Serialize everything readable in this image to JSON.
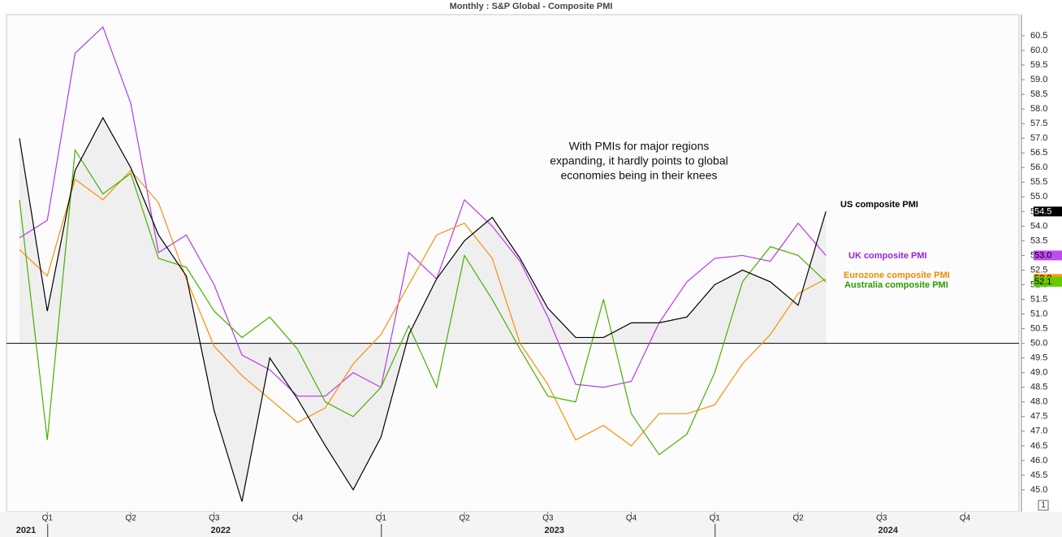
{
  "chart_data": {
    "type": "line",
    "title": "Monthly : S&P Global - Composite PMI",
    "annotation": [
      "With PMIs for major regions",
      "expanding, it hardly points to global",
      "economies being in their knees"
    ],
    "badge": "1",
    "x": [
      "2020-12",
      "2021-01",
      "2021-02",
      "2021-03",
      "2021-04",
      "2021-05",
      "2021-06",
      "2021-07",
      "2021-08",
      "2021-09",
      "2021-10",
      "2021-11",
      "2021-12",
      "2022-01",
      "2022-02",
      "2022-03",
      "2022-04",
      "2022-05",
      "2022-06",
      "2022-07",
      "2022-08",
      "2022-09",
      "2022-10",
      "2022-11",
      "2022-12",
      "2023-01",
      "2023-02",
      "2023-03",
      "2023-04",
      "2023-05"
    ],
    "xlim": [
      "2020-12",
      "2023-12"
    ],
    "xticks": [
      {
        "value": "2021-01",
        "label": "Q1"
      },
      {
        "value": "2021-04",
        "label": "Q2"
      },
      {
        "value": "2021-07",
        "label": "Q3"
      },
      {
        "value": "2021-10",
        "label": "Q4"
      },
      {
        "value": "2022-01",
        "label": "Q1"
      },
      {
        "value": "2022-04",
        "label": "Q2"
      },
      {
        "value": "2022-07",
        "label": "Q3"
      },
      {
        "value": "2022-10",
        "label": "Q4"
      },
      {
        "value": "2023-01",
        "label": "Q1"
      },
      {
        "value": "2023-04",
        "label": "Q2"
      },
      {
        "value": "2023-07",
        "label": "Q3"
      },
      {
        "value": "2023-10",
        "label": "Q4"
      }
    ],
    "year_ticks": [
      {
        "value": "2020-12",
        "label": "2021"
      },
      {
        "value": "2021-07",
        "label": "2022"
      },
      {
        "value": "2022-07",
        "label": "2023"
      },
      {
        "value": "2023-07",
        "label": "2024"
      }
    ],
    "year_separators": [
      "2021-01",
      "2022-01",
      "2023-01"
    ],
    "ylim": [
      44.25,
      61.22
    ],
    "yticks": [
      {
        "value": 45,
        "label": "45.0"
      },
      {
        "value": 45.5,
        "label": "45.5"
      },
      {
        "value": 46,
        "label": "46.0"
      },
      {
        "value": 46.5,
        "label": "46.5"
      },
      {
        "value": 47,
        "label": "47.0"
      },
      {
        "value": 47.5,
        "label": "47.5"
      },
      {
        "value": 48,
        "label": "48.0"
      },
      {
        "value": 48.5,
        "label": "48.5"
      },
      {
        "value": 49,
        "label": "49.0"
      },
      {
        "value": 49.5,
        "label": "49.5"
      },
      {
        "value": 50,
        "label": "50.0"
      },
      {
        "value": 50.5,
        "label": "50.5"
      },
      {
        "value": 51,
        "label": "51.0"
      },
      {
        "value": 51.5,
        "label": "51.5"
      },
      {
        "value": 52,
        "label": "52.0"
      },
      {
        "value": 52.5,
        "label": "52.5"
      },
      {
        "value": 53,
        "label": "53.0"
      },
      {
        "value": 53.5,
        "label": "53.5"
      },
      {
        "value": 54,
        "label": "54.0"
      },
      {
        "value": 54.5,
        "label": "54.5"
      },
      {
        "value": 55,
        "label": "55.0"
      },
      {
        "value": 55.5,
        "label": "55.5"
      },
      {
        "value": 56,
        "label": "56.0"
      },
      {
        "value": 56.5,
        "label": "56.5"
      },
      {
        "value": 57,
        "label": "57.0"
      },
      {
        "value": 57.5,
        "label": "57.5"
      },
      {
        "value": 58,
        "label": "58.0"
      },
      {
        "value": 58.5,
        "label": "58.5"
      },
      {
        "value": 59,
        "label": "59.0"
      },
      {
        "value": 59.5,
        "label": "59.5"
      },
      {
        "value": 60,
        "label": "60.0"
      },
      {
        "value": 60.5,
        "label": "60.5"
      }
    ],
    "reference_line": 50,
    "series": [
      {
        "name": "US composite PMI",
        "color": "#000000",
        "label_color": "#000000",
        "box_color": "#000000",
        "box_text": "#ffffff",
        "fill_to_reference": true,
        "last_value_label": "54.5",
        "values": [
          57.0,
          51.1,
          55.9,
          57.7,
          56.0,
          53.7,
          52.3,
          47.7,
          44.6,
          49.5,
          48.1,
          46.5,
          45.0,
          46.8,
          50.3,
          52.2,
          53.5,
          54.3,
          52.9,
          51.2,
          50.2,
          50.2,
          50.7,
          50.7,
          50.9,
          52.0,
          52.5,
          52.1,
          51.3,
          54.5
        ]
      },
      {
        "name": "UK composite PMI",
        "color": "#b53ae8",
        "label_color": "#9b22d8",
        "box_color": "#c04af0",
        "box_text": "#000000",
        "last_value_label": "53.0",
        "values": [
          53.6,
          54.2,
          59.9,
          60.8,
          58.2,
          53.1,
          53.7,
          52.0,
          49.6,
          49.1,
          48.2,
          48.2,
          49.0,
          48.5,
          53.1,
          52.2,
          54.9,
          54.0,
          52.8,
          50.9,
          48.6,
          48.5,
          48.7,
          50.7,
          52.1,
          52.9,
          53.0,
          52.8,
          54.1,
          53.0
        ]
      },
      {
        "name": "Eurozone composite PMI",
        "color": "#f5900a",
        "label_color": "#f08a00",
        "box_color": "#f59a10",
        "box_text": "#000000",
        "last_value_label": "52.2",
        "values": [
          53.2,
          52.3,
          55.6,
          54.9,
          55.9,
          54.8,
          52.2,
          49.9,
          48.9,
          48.1,
          47.3,
          47.8,
          49.3,
          50.3,
          52.0,
          53.7,
          54.1,
          52.9,
          50.0,
          48.6,
          46.7,
          47.2,
          46.5,
          47.6,
          47.6,
          47.9,
          49.3,
          50.3,
          51.7,
          52.2
        ]
      },
      {
        "name": "Australia composite PMI",
        "color": "#48b000",
        "label_color": "#2a9a00",
        "box_color": "#66cc00",
        "box_text": "#000000",
        "last_value_label": "52.1",
        "values": [
          54.9,
          46.7,
          56.6,
          55.1,
          55.8,
          52.9,
          52.6,
          51.1,
          50.2,
          50.9,
          49.8,
          48.0,
          47.5,
          48.5,
          50.6,
          48.5,
          53.0,
          51.5,
          49.8,
          48.2,
          48.0,
          51.5,
          47.6,
          46.2,
          46.9,
          49.0,
          52.1,
          53.3,
          53.0,
          52.1
        ]
      }
    ]
  }
}
